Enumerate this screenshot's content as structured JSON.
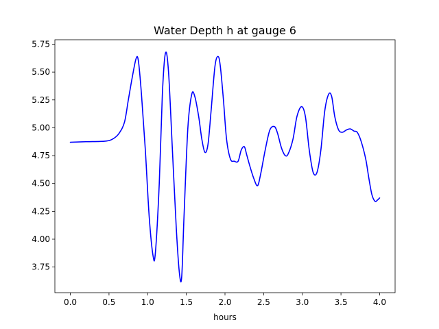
{
  "chart_data": {
    "type": "line",
    "title": "Water Depth h at gauge 6",
    "xlabel": "hours",
    "ylabel": "",
    "xlim": [
      -0.2,
      4.2
    ],
    "ylim": [
      3.52,
      5.79
    ],
    "xticks": [
      0.0,
      0.5,
      1.0,
      1.5,
      2.0,
      2.5,
      3.0,
      3.5,
      4.0
    ],
    "xtick_labels": [
      "0.0",
      "0.5",
      "1.0",
      "1.5",
      "2.0",
      "2.5",
      "3.0",
      "3.5",
      "4.0"
    ],
    "yticks": [
      3.75,
      4.0,
      4.25,
      4.5,
      4.75,
      5.0,
      5.25,
      5.5,
      5.75
    ],
    "ytick_labels": [
      "3.75",
      "4.00",
      "4.25",
      "4.50",
      "4.75",
      "5.00",
      "5.25",
      "5.50",
      "5.75"
    ],
    "grid": false,
    "series": [
      {
        "color": "#0000ff",
        "x": [
          0.0,
          0.2,
          0.45,
          0.55,
          0.63,
          0.7,
          0.75,
          0.8,
          0.85,
          0.88,
          0.92,
          0.97,
          1.02,
          1.07,
          1.1,
          1.15,
          1.19,
          1.23,
          1.27,
          1.32,
          1.37,
          1.41,
          1.44,
          1.47,
          1.52,
          1.57,
          1.61,
          1.66,
          1.7,
          1.74,
          1.78,
          1.82,
          1.87,
          1.91,
          1.94,
          1.98,
          2.02,
          2.07,
          2.12,
          2.17,
          2.21,
          2.25,
          2.28,
          2.32,
          2.37,
          2.42,
          2.46,
          2.52,
          2.58,
          2.64,
          2.68,
          2.73,
          2.78,
          2.82,
          2.88,
          2.93,
          2.99,
          3.04,
          3.09,
          3.14,
          3.19,
          3.24,
          3.29,
          3.34,
          3.38,
          3.42,
          3.47,
          3.52,
          3.57,
          3.62,
          3.67,
          3.71,
          3.76,
          3.82,
          3.86,
          3.9,
          3.94,
          3.97,
          4.0
        ],
        "y": [
          4.87,
          4.875,
          4.88,
          4.9,
          4.95,
          5.05,
          5.25,
          5.45,
          5.62,
          5.6,
          5.3,
          4.8,
          4.2,
          3.85,
          3.88,
          4.5,
          5.3,
          5.67,
          5.5,
          4.8,
          4.1,
          3.7,
          3.66,
          4.2,
          5.0,
          5.3,
          5.28,
          5.1,
          4.9,
          4.78,
          4.85,
          5.15,
          5.55,
          5.64,
          5.55,
          5.25,
          4.9,
          4.72,
          4.7,
          4.7,
          4.8,
          4.83,
          4.76,
          4.66,
          4.55,
          4.48,
          4.58,
          4.8,
          4.98,
          5.01,
          4.95,
          4.82,
          4.75,
          4.77,
          4.9,
          5.1,
          5.19,
          5.1,
          4.8,
          4.6,
          4.6,
          4.8,
          5.15,
          5.3,
          5.28,
          5.1,
          4.98,
          4.96,
          4.98,
          4.99,
          4.97,
          4.96,
          4.88,
          4.72,
          4.55,
          4.4,
          4.34,
          4.35,
          4.37
        ]
      }
    ]
  }
}
